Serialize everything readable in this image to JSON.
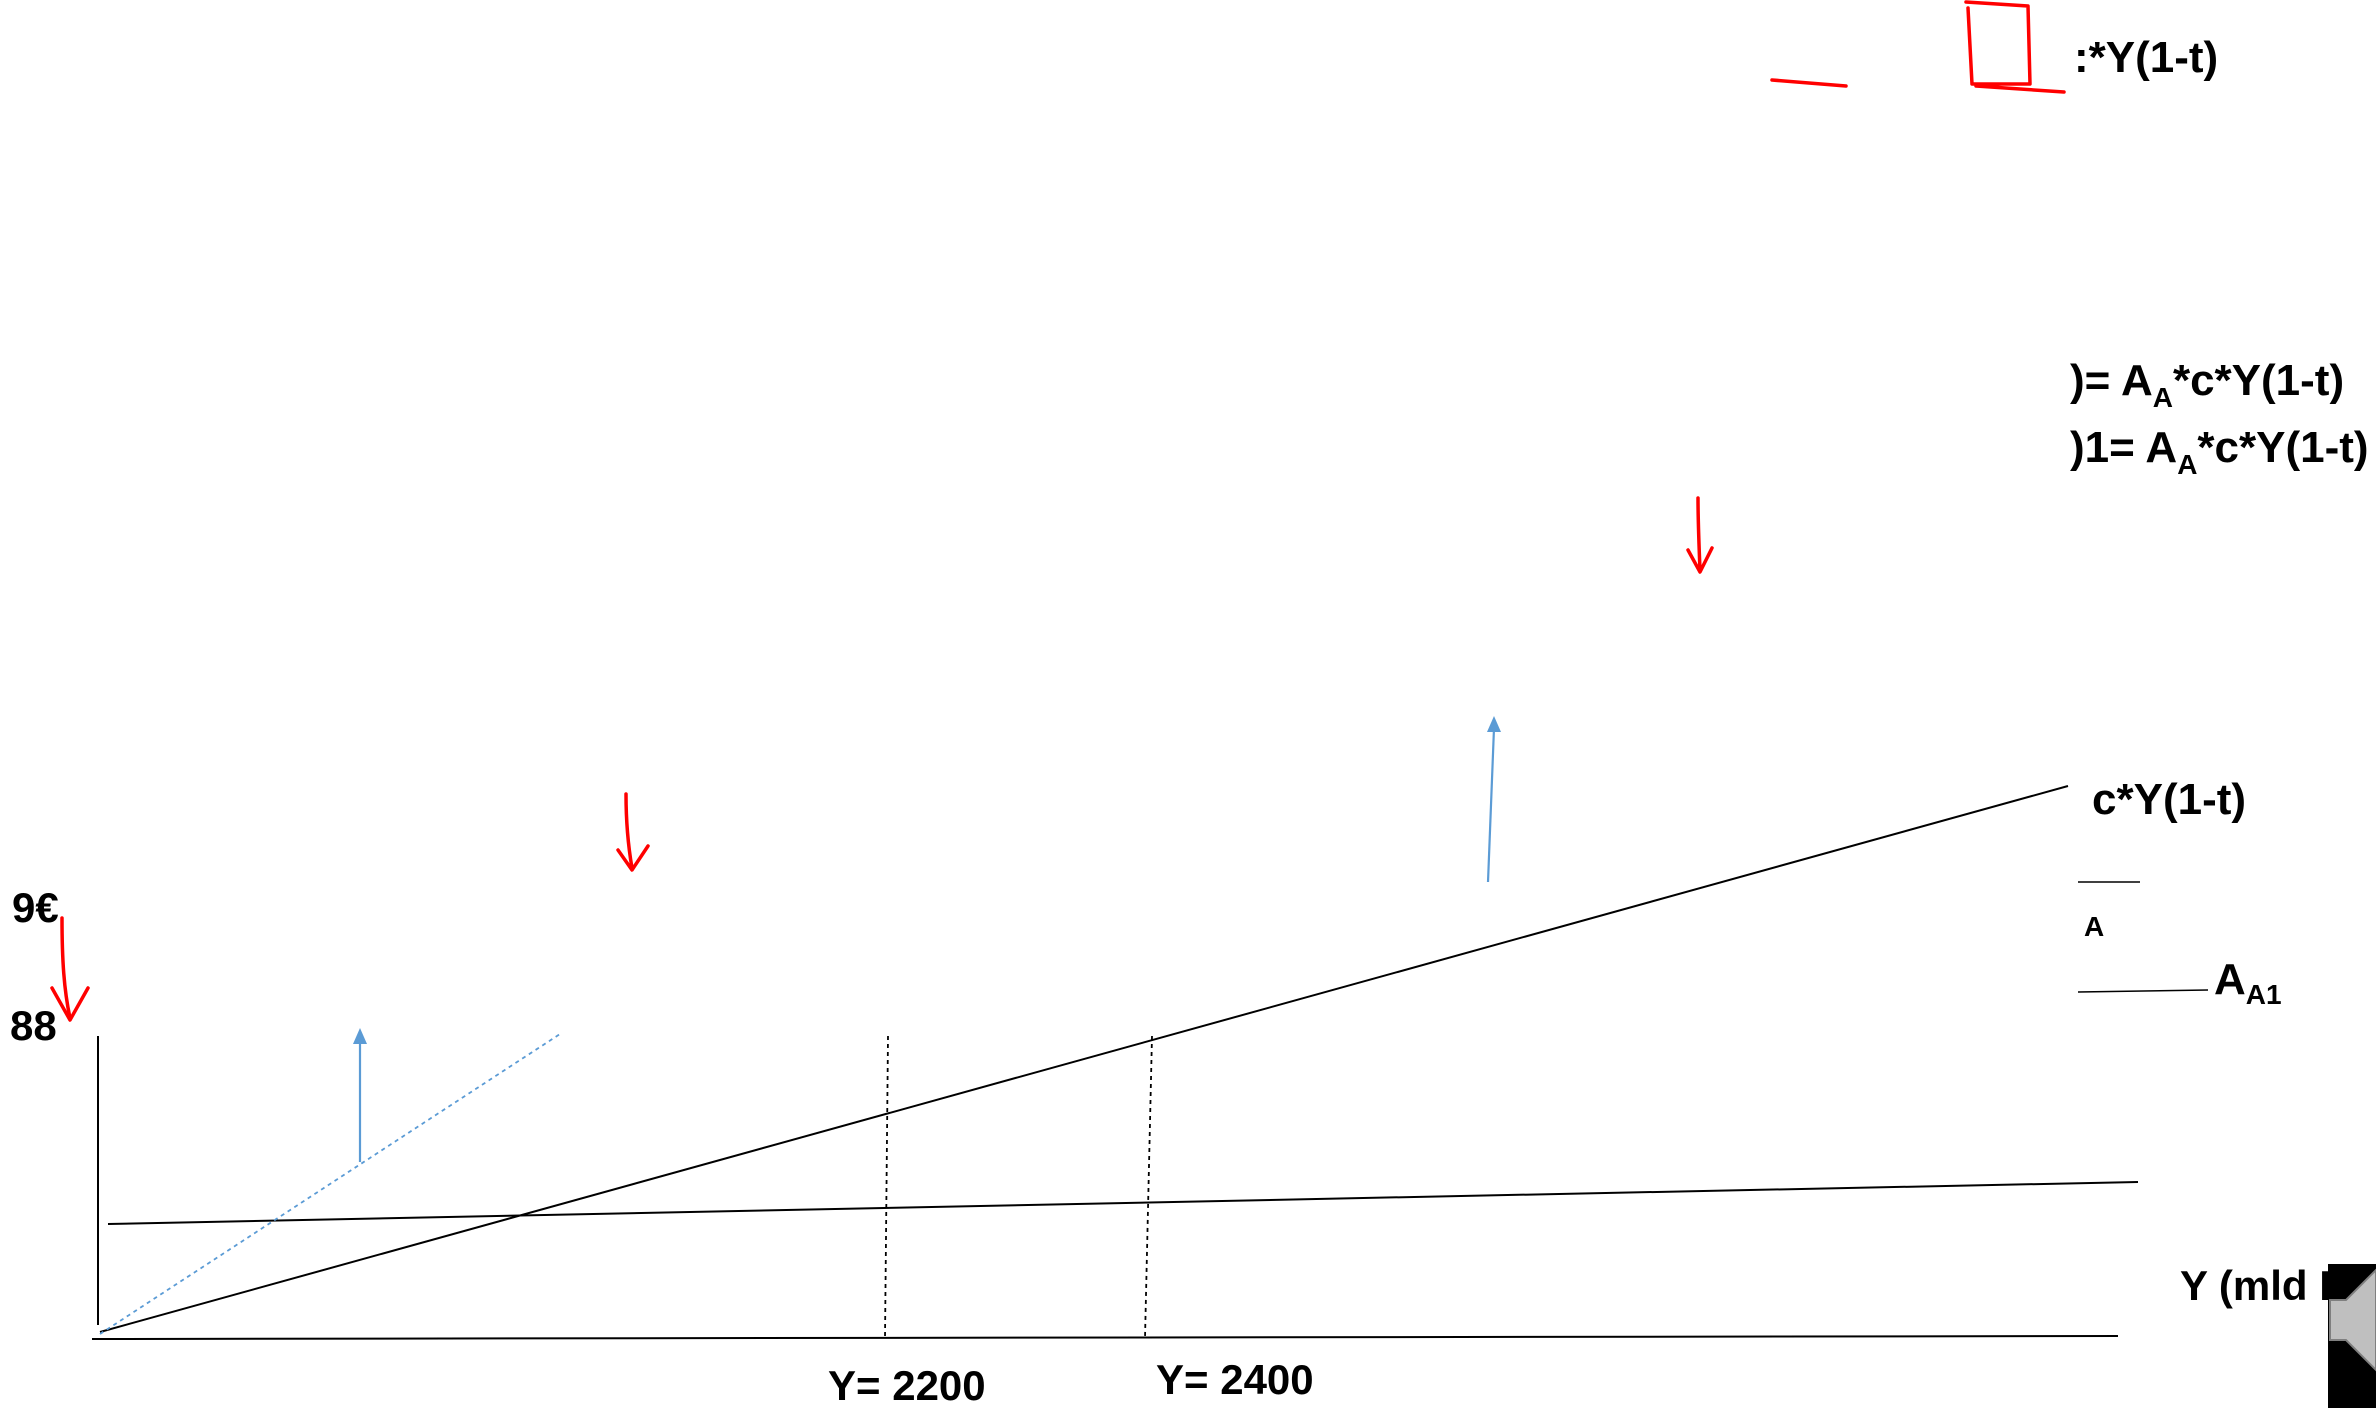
{
  "labels": {
    "top_formula": ":*Y(1-t)",
    "formula_1_prefix": ")= A",
    "formula_1_sub": "A",
    "formula_1_suffix": "*c*Y(1-t)",
    "formula_2_prefix": ")1= A",
    "formula_2_sub": "A",
    "formula_2_suffix": "*c*Y(1-t)",
    "line_label": "c*Y(1-t)",
    "aa_label_sub": "A",
    "aa1_label_main": "A",
    "aa1_label_sub": "A1",
    "y_tick_96": "9€",
    "y_tick_88": "88",
    "x_tick_2200": "Y= 2200",
    "x_tick_2400": "Y= 2400",
    "x_axis_label": "Y (mld H"
  },
  "colors": {
    "annotation_red": "#ff0000",
    "shift_blue": "#5b9bd5",
    "axis_black": "#000000"
  }
}
